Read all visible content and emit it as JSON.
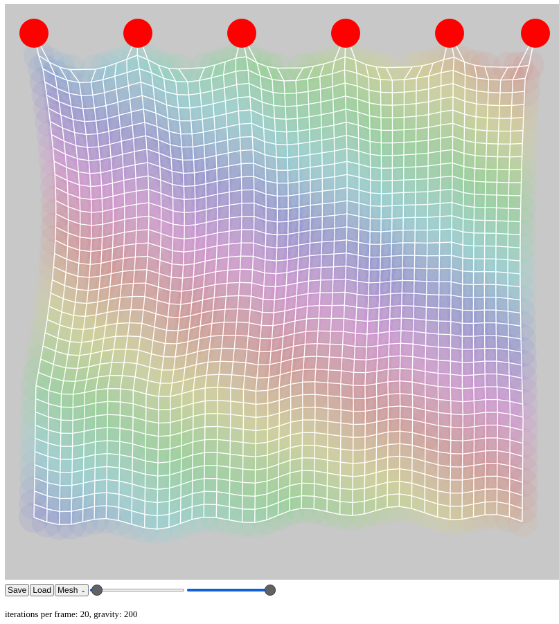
{
  "controls": {
    "save_label": "Save",
    "load_label": "Load",
    "mode_select": {
      "value": "Mesh"
    },
    "iterations_slider": {
      "value": 20,
      "fraction": 0.02
    },
    "gravity_slider": {
      "value": 200,
      "fraction": 1.0
    }
  },
  "status": {
    "iterations_label": "iterations per frame:",
    "iterations_value": "20",
    "gravity_label": "gravity:",
    "gravity_value": "200"
  },
  "canvas": {
    "background": "#c8c8c8",
    "mesh_color": "#ffffff",
    "anchor_color": "#ff0000",
    "pinned_anchor_count": 6
  }
}
